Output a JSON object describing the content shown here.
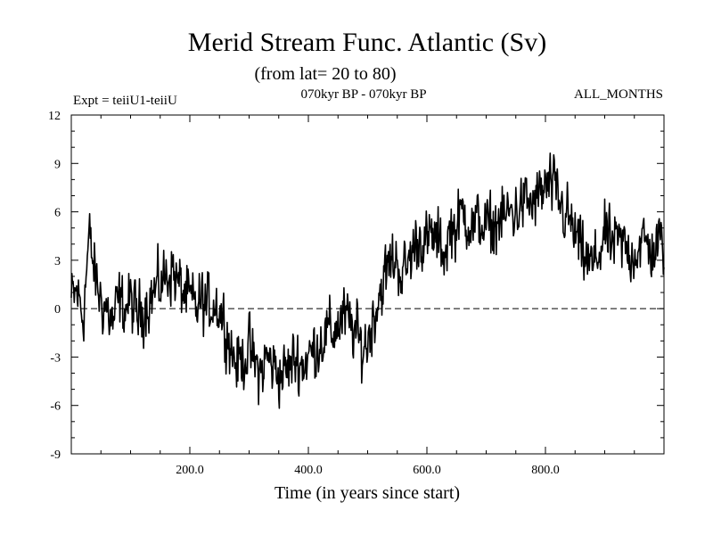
{
  "chart_data": {
    "type": "line",
    "title": "Merid Stream Func. Atlantic (Sv)",
    "subtitle": "(from lat= 20 to 80)",
    "info_left": "Expt = teiiU1-teiiU",
    "info_center": "070kyr BP - 070kyr BP",
    "info_right": "ALL_MONTHS",
    "xlabel": "Time (in years since start)",
    "ylabel": "",
    "xlim": [
      0,
      1000
    ],
    "ylim": [
      -9,
      12
    ],
    "x_ticks": [
      200,
      400,
      600,
      800
    ],
    "x_tick_labels": [
      "200.0",
      "400.0",
      "600.0",
      "800.0"
    ],
    "y_ticks": [
      -9,
      -6,
      -3,
      0,
      3,
      6,
      9,
      12
    ],
    "y_tick_labels": [
      "-9",
      "-6",
      "-3",
      "0",
      "3",
      "6",
      "9",
      "12"
    ],
    "grid": false,
    "reference_line": {
      "y": 0,
      "style": "dashed"
    },
    "series": [
      {
        "points": [
          [
            0,
            0.5
          ],
          [
            10,
            1.0
          ],
          [
            20,
            -0.5
          ],
          [
            30,
            4.5
          ],
          [
            40,
            2.0
          ],
          [
            50,
            0.5
          ],
          [
            60,
            0.0
          ],
          [
            70,
            -1.0
          ],
          [
            80,
            0.5
          ],
          [
            90,
            0.0
          ],
          [
            100,
            0.5
          ],
          [
            110,
            -0.5
          ],
          [
            120,
            0.0
          ],
          [
            130,
            0.5
          ],
          [
            140,
            1.0
          ],
          [
            150,
            1.5
          ],
          [
            160,
            2.0
          ],
          [
            170,
            2.5
          ],
          [
            180,
            1.5
          ],
          [
            190,
            1.0
          ],
          [
            200,
            0.5
          ],
          [
            210,
            0.0
          ],
          [
            220,
            0.5
          ],
          [
            230,
            0.0
          ],
          [
            240,
            0.5
          ],
          [
            250,
            0.0
          ],
          [
            260,
            -1.0
          ],
          [
            270,
            -2.5
          ],
          [
            280,
            -3.5
          ],
          [
            290,
            -3.0
          ],
          [
            300,
            -2.5
          ],
          [
            310,
            -3.5
          ],
          [
            320,
            -4.0
          ],
          [
            330,
            -3.0
          ],
          [
            340,
            -3.5
          ],
          [
            350,
            -4.0
          ],
          [
            360,
            -4.0
          ],
          [
            370,
            -3.5
          ],
          [
            380,
            -3.0
          ],
          [
            390,
            -3.5
          ],
          [
            400,
            -3.0
          ],
          [
            410,
            -2.5
          ],
          [
            420,
            -2.0
          ],
          [
            430,
            -1.5
          ],
          [
            440,
            -1.5
          ],
          [
            450,
            -1.0
          ],
          [
            460,
            -0.5
          ],
          [
            470,
            -1.0
          ],
          [
            480,
            -1.5
          ],
          [
            490,
            -2.5
          ],
          [
            500,
            -2.0
          ],
          [
            510,
            -0.5
          ],
          [
            520,
            1.0
          ],
          [
            530,
            2.0
          ],
          [
            540,
            3.0
          ],
          [
            550,
            3.0
          ],
          [
            560,
            2.0
          ],
          [
            570,
            3.0
          ],
          [
            580,
            4.0
          ],
          [
            590,
            4.5
          ],
          [
            600,
            4.0
          ],
          [
            610,
            4.5
          ],
          [
            620,
            4.0
          ],
          [
            630,
            3.5
          ],
          [
            640,
            5.0
          ],
          [
            650,
            5.0
          ],
          [
            660,
            6.0
          ],
          [
            670,
            5.5
          ],
          [
            680,
            5.0
          ],
          [
            690,
            5.5
          ],
          [
            700,
            5.0
          ],
          [
            710,
            5.0
          ],
          [
            720,
            5.5
          ],
          [
            730,
            5.5
          ],
          [
            740,
            6.0
          ],
          [
            750,
            6.0
          ],
          [
            760,
            6.5
          ],
          [
            770,
            6.5
          ],
          [
            780,
            6.5
          ],
          [
            790,
            7.0
          ],
          [
            800,
            7.5
          ],
          [
            810,
            7.5
          ],
          [
            820,
            7.0
          ],
          [
            830,
            6.0
          ],
          [
            840,
            5.5
          ],
          [
            850,
            4.5
          ],
          [
            860,
            3.5
          ],
          [
            870,
            3.0
          ],
          [
            880,
            2.5
          ],
          [
            890,
            3.5
          ],
          [
            900,
            4.5
          ],
          [
            910,
            4.0
          ],
          [
            920,
            4.0
          ],
          [
            930,
            4.0
          ],
          [
            940,
            3.5
          ],
          [
            950,
            3.5
          ],
          [
            960,
            4.0
          ],
          [
            970,
            4.0
          ],
          [
            980,
            3.5
          ],
          [
            990,
            4.0
          ],
          [
            1000,
            4.0
          ]
        ],
        "noise_amplitude": 2.3,
        "color": "#000000"
      }
    ]
  }
}
